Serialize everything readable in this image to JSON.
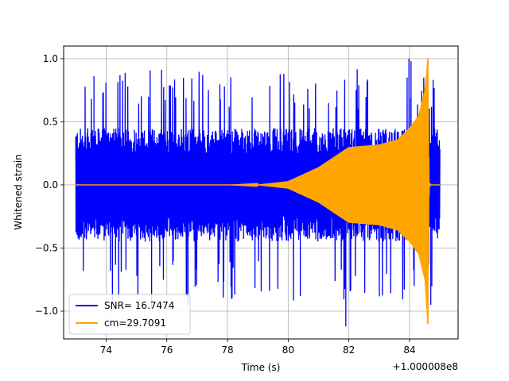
{
  "chart_data": {
    "type": "line",
    "title": "",
    "xlabel": "Time (s)",
    "ylabel": "Whitened strain",
    "x_offset_label": "+1.000008e8",
    "xlim": [
      72.6,
      85.6
    ],
    "ylim": [
      -1.22,
      1.1
    ],
    "grid": true,
    "legend_placement": "lower left",
    "x_ticks": [
      74,
      76,
      78,
      80,
      82,
      84
    ],
    "x_tick_labels": [
      "74",
      "76",
      "78",
      "80",
      "82",
      "84"
    ],
    "y_ticks": [
      -1.0,
      -0.5,
      0.0,
      0.5,
      1.0
    ],
    "y_tick_labels": [
      "−1.0",
      "−0.5",
      "0.0",
      "0.5",
      "1.0"
    ],
    "series": [
      {
        "name": "SNR= 16.7474",
        "color": "#0000ff",
        "x_range": [
          73.0,
          85.0
        ],
        "typical_amplitude": 0.45,
        "peak_max": 1.0,
        "peak_min": -1.12
      },
      {
        "name": "cm=29.7091",
        "color": "#ffa500",
        "x_range": [
          73.0,
          85.0
        ],
        "envelope": {
          "x": [
            73.0,
            78.0,
            79.0,
            80.0,
            81.0,
            82.0,
            83.0,
            83.6,
            84.0,
            84.3,
            84.5,
            84.6,
            84.65,
            84.7,
            85.0
          ],
          "upper": [
            0.0,
            0.0,
            0.003,
            0.03,
            0.14,
            0.3,
            0.32,
            0.36,
            0.45,
            0.55,
            0.75,
            1.0,
            0.02,
            0.0,
            0.0
          ],
          "lower": [
            0.0,
            0.0,
            -0.003,
            -0.03,
            -0.14,
            -0.3,
            -0.32,
            -0.36,
            -0.45,
            -0.55,
            -0.75,
            -1.1,
            -0.02,
            0.0,
            0.0
          ]
        }
      }
    ]
  }
}
